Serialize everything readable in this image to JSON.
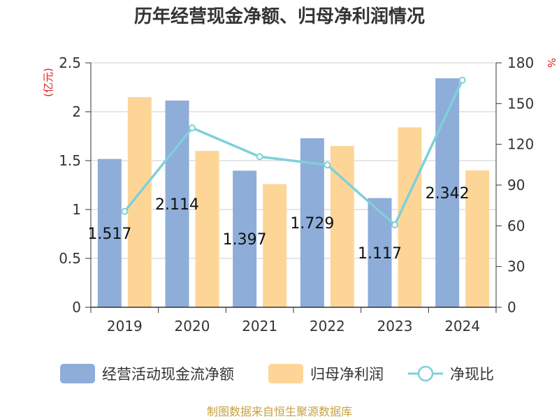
{
  "chart_data": {
    "type": "bar",
    "title": "历年经营现金净额、归母净利润情况",
    "categories": [
      "2019",
      "2020",
      "2021",
      "2022",
      "2023",
      "2024"
    ],
    "series": [
      {
        "name": "经营活动现金流净额",
        "type": "bar",
        "axis": "left",
        "color": "#8eadd9",
        "values": [
          1.517,
          2.114,
          1.397,
          1.729,
          1.117,
          2.342
        ],
        "data_labels": [
          "1.517",
          "2.114",
          "1.397",
          "1.729",
          "1.117",
          "2.342"
        ]
      },
      {
        "name": "归母净利润",
        "type": "bar",
        "axis": "left",
        "color": "#fdd697",
        "values": [
          2.15,
          1.6,
          1.26,
          1.65,
          1.84,
          1.4
        ]
      },
      {
        "name": "净现比",
        "type": "line",
        "axis": "right",
        "color": "#7fd0d8",
        "values": [
          70.6,
          132.1,
          110.9,
          104.8,
          60.7,
          167.3
        ]
      }
    ],
    "y_left": {
      "unit_label": "(亿元)",
      "ylim": [
        0,
        2.5
      ],
      "ticks": [
        "0",
        "0.5",
        "1",
        "1.5",
        "2",
        "2.5"
      ]
    },
    "y_right": {
      "unit_label": "%",
      "ylim": [
        0,
        180
      ],
      "ticks": [
        "0",
        "30",
        "60",
        "90",
        "120",
        "150",
        "180"
      ]
    },
    "grid": true,
    "legend_position": "bottom"
  },
  "source_note": "制图数据来自恒生聚源数据库"
}
